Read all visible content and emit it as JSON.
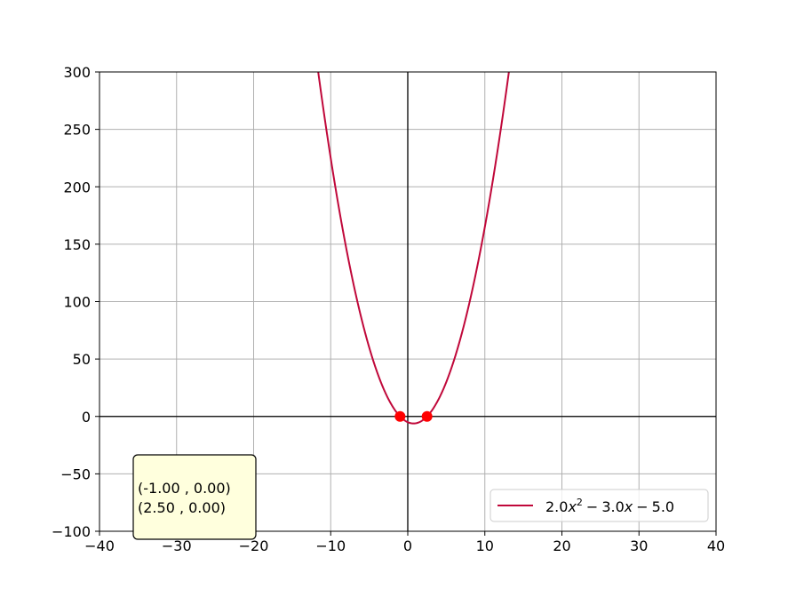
{
  "chart_data": {
    "type": "line",
    "title": "",
    "xlabel": "",
    "ylabel": "",
    "xlim": [
      -40,
      40
    ],
    "ylim": [
      -100,
      300
    ],
    "xticks": [
      -40,
      -30,
      -20,
      -10,
      0,
      10,
      20,
      30,
      40
    ],
    "yticks": [
      -100,
      -50,
      0,
      50,
      100,
      150,
      200,
      250,
      300
    ],
    "grid": true,
    "legend_position": "lower-right",
    "series": [
      {
        "name": "2.0x² − 3.0x − 5.0",
        "legend_label": {
          "coef_a": "2.0",
          "var_sq": "x",
          "exponent": "2",
          "op1": "−",
          "coef_b": "3.0",
          "var_lin": "x",
          "op2": "−",
          "constant": "5.0"
        },
        "coefficients": {
          "a": 2.0,
          "b": -3.0,
          "c": -5.0
        },
        "color": "#c0083a"
      }
    ],
    "roots": [
      {
        "x": -1.0,
        "y": 0.0,
        "color": "#ff0000"
      },
      {
        "x": 2.5,
        "y": 0.0,
        "color": "#ff0000"
      }
    ],
    "annotation": {
      "lines": [
        "(-1.00 , 0.00)",
        "(2.50 , 0.00)"
      ],
      "background": "#ffffdd"
    }
  }
}
